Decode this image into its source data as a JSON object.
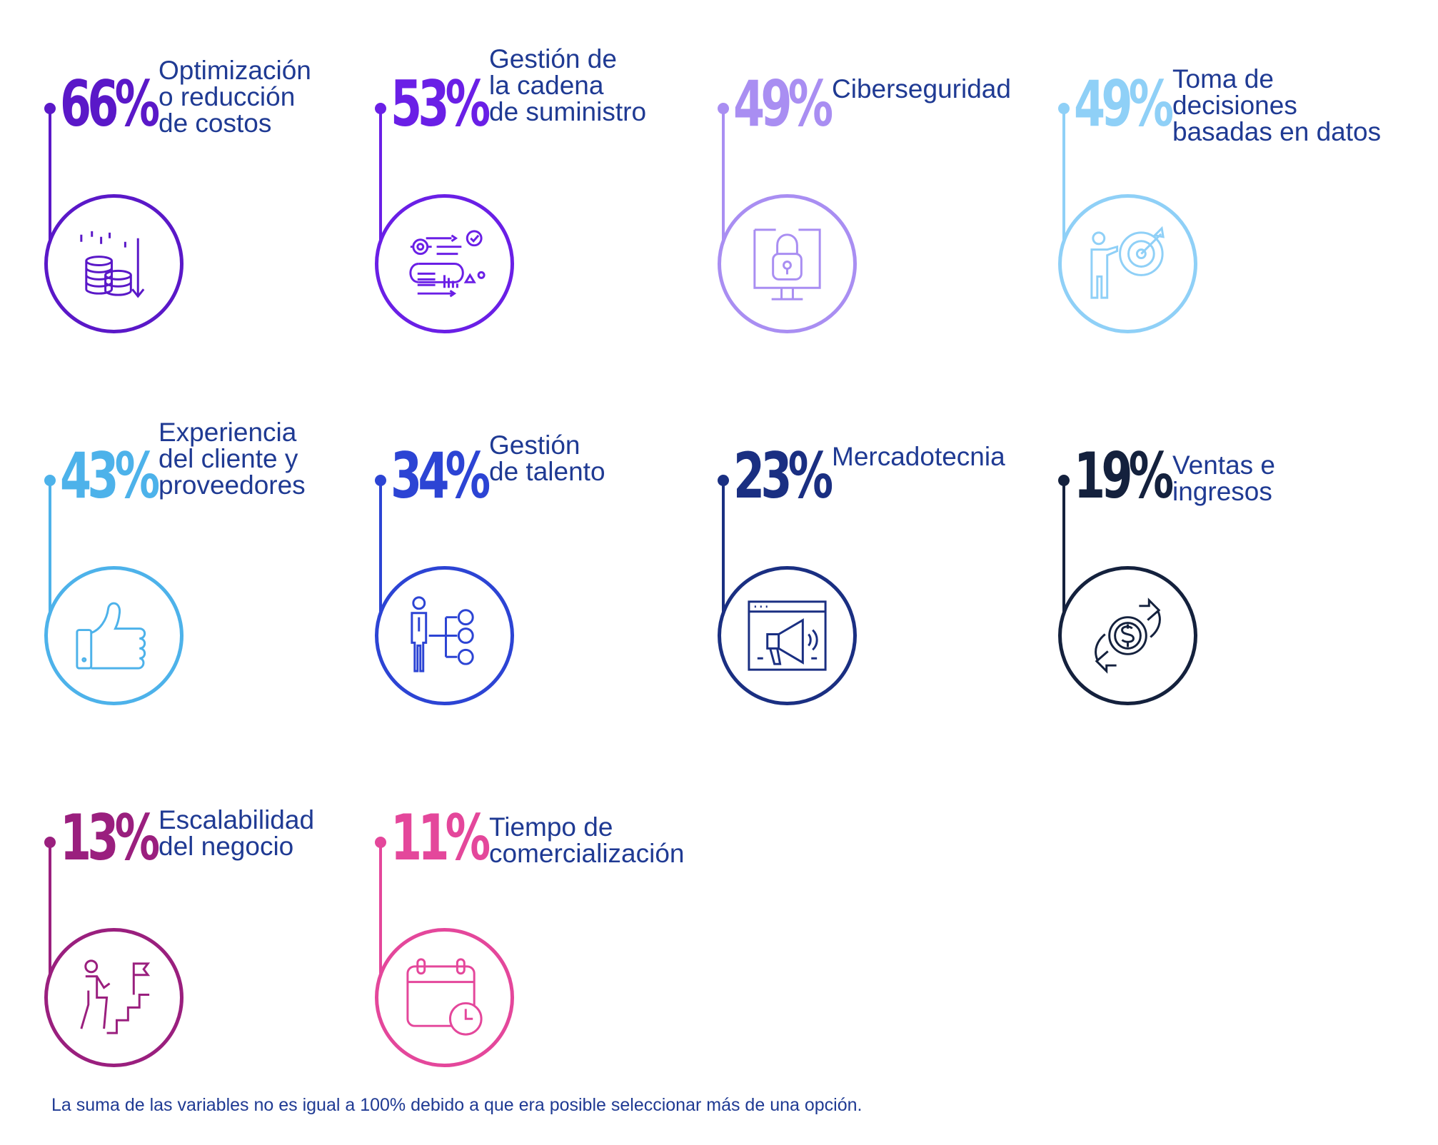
{
  "chart_data": {
    "type": "infographic",
    "unit": "%",
    "items": [
      {
        "value": 66,
        "value_text": "66%",
        "label": "Optimización\no reducción\nde costos",
        "color": "#5a18c8",
        "icon": "coins-down-icon"
      },
      {
        "value": 53,
        "value_text": "53%",
        "label": "Gestión de\nla cadena\nde suministro",
        "color": "#6a1fe6",
        "icon": "supply-chain-icon"
      },
      {
        "value": 49,
        "value_text": "49%",
        "label": "Ciberseguridad",
        "color": "#a98ef2",
        "icon": "lock-monitor-icon"
      },
      {
        "value": 49,
        "value_text": "49%",
        "label": "Toma de decisiones\nbasadas en datos",
        "color": "#8fd0f7",
        "icon": "target-person-icon"
      },
      {
        "value": 43,
        "value_text": "43%",
        "label": "Experiencia\ndel cliente y\nproveedores",
        "color": "#4db2ea",
        "icon": "thumbs-up-icon"
      },
      {
        "value": 34,
        "value_text": "34%",
        "label": "Gestión\nde talento",
        "color": "#2c44d4",
        "icon": "person-network-icon"
      },
      {
        "value": 23,
        "value_text": "23%",
        "label": "Mercadotecnia",
        "color": "#1a2f82",
        "icon": "megaphone-icon"
      },
      {
        "value": 19,
        "value_text": "19%",
        "label": "Ventas e\ningresos",
        "color": "#14213d",
        "icon": "dollar-exchange-icon"
      },
      {
        "value": 13,
        "value_text": "13%",
        "label": "Escalabilidad\ndel negocio",
        "color": "#9a1f7e",
        "icon": "stairs-flag-icon"
      },
      {
        "value": 11,
        "value_text": "11%",
        "label": "Tiempo de\ncomercialización",
        "color": "#e4479b",
        "icon": "calendar-clock-icon"
      }
    ]
  },
  "footnote": "La suma de las variables no es igual a 100% debido a que era posible seleccionar más de una opción."
}
